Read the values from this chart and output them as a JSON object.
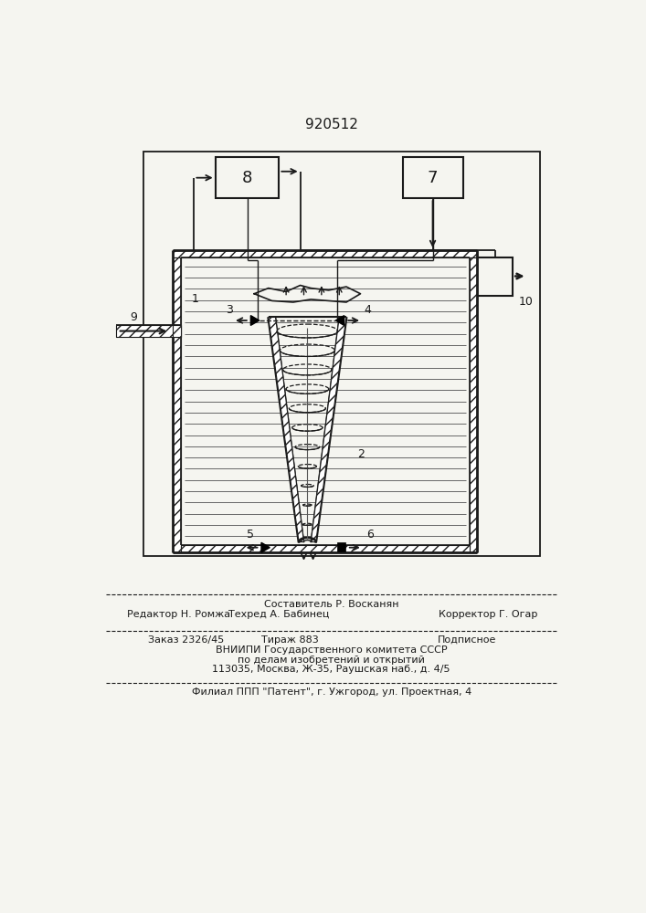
{
  "title": "920512",
  "bg_color": "#f5f5f0",
  "line_color": "#1a1a1a",
  "text_color": "#1a1a1a",
  "footer_editor": "Редактор Н. Ромжа",
  "footer_composer": "Составитель Р. Восканян",
  "footer_techred": "Техред А. Бабинец",
  "footer_corrector": "Корректор Г. Огар",
  "footer_order": "Заказ 2326/45",
  "footer_tirazh": "Тираж 883",
  "footer_podpisnoe": "Подписное",
  "footer_vniipи": "ВНИИПИ Государственного комитета СССР",
  "footer_po": "по делам изобретений и открытий",
  "footer_addr": "113035, Москва, Ж-35, Раушская наб., д. 4/5",
  "footer_filial": "Филиал ППП \"Патент\", г. Ужгород, ул. Проектная, 4"
}
